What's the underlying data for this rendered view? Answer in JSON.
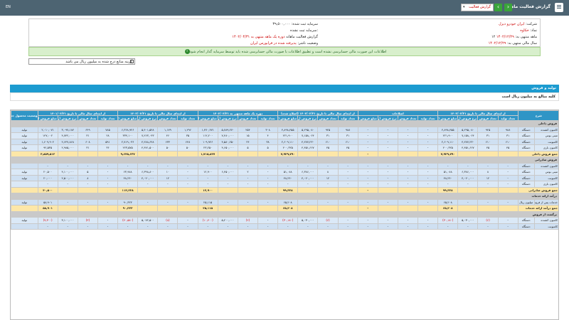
{
  "topbar": {
    "title": "گزارش فعالیت ماهانه",
    "select_value": "گزارش فعالیت",
    "next": "›",
    "prev": "‹",
    "lang": "EN"
  },
  "info": {
    "company_label": "شرکت:",
    "company_value": "ایران خودرو دیزل",
    "symbol_label": "نماد:",
    "symbol_value": "خکاوه",
    "period_label": "۱۲ ماهه منتهی به:",
    "period_value": "۱۴۰۲/۱۲/۲۹",
    "fiscal_label": "سال مالی منتهی به:",
    "fiscal_value": "۱۴۰۲/۱۲/۲۹",
    "capital_label": "سرمایه ثبت شده:",
    "capital_value": "۳۹,۵۰۰,۰۰۰",
    "unreg_label": "سرمایه ثبت نشده:",
    "unreg_value": "",
    "report_label": "گزارش فعالیت ماهانه",
    "report_value": "دوره یک ماهه منتهی به ۱۴۰۲/۰۴/۳۱",
    "status_label": "وضعیت ناشر:",
    "status_value": "پذیرفته شده در فرابورس ایران"
  },
  "notice": "اطلاعات این صورت مالی حسابرسی نشده است و تطبیق اطلاعات با صورت مالی حسابرسی شده باید توسط سرمایه گذار انجام شود",
  "checkbox_label": "گزینه منابع درج شده به میلیون ریال می باشد",
  "section_title": "تولید و فروش",
  "section_sub": "کلیه مبالغ به میلیون ریال است",
  "headers": {
    "desc": "شرح",
    "unit": "واحد",
    "product": "نام محصول",
    "groups": [
      "از ابتدای سال مالی تا تاریخ ۱۴۰۲/۰۳/۳۱",
      "اصلاحات",
      "از ابتدای سال مالی تا تاریخ ۱۴۰۲/۰۳/۳۱ (اصلاح شده)",
      "دوره یک ماهه منتهی به ۱۴۰۲/۰۴/۳۱",
      "از ابتدای سال مالی تا تاریخ ۱۴۰۲/۰۴/۳۱",
      "از ابتدای سال مالی تا تاریخ ۱۴۰۱/۰۴/۳۱",
      "وضعیت محصول جدید"
    ],
    "sub": [
      "تعداد تولید",
      "تعداد فروش",
      "نرخ فروش (ریال)",
      "مبلغ فروش (میلیون ریال)"
    ]
  },
  "groups": [
    {
      "title": "فروش داخلی",
      "rows": [
        {
          "name": "کامیون کشنده",
          "unit": "دستگاه",
          "v": [
            "۹۸۸",
            "۹۲۵",
            "۵,۲۹۵,۰۸۰",
            "۴,۸۹۸,۴۵۵",
            "-",
            "-",
            "-",
            "-",
            "۹۸۸",
            "۹۲۵",
            "۵,۲۹۵,۰۸۰",
            "۴,۸۹۸,۴۵۵",
            "۳۰۸",
            "۲۵۴",
            "۵,۷۸۹,۲۷۰",
            "۱,۴۷۰,۴۷۱",
            "۱,۲۹۶",
            "۱,۱۷۹",
            "۵,۴۰۱,۵۴۸",
            "۶,۳۶۸,۹۲۶",
            "۷۸۵",
            "۶۴۹",
            "۳,۰۹۷,۱۸۴",
            "۲,۰۱۰,۰۷۱"
          ],
          "status": "تولید"
        },
        {
          "name": "مینی بوس",
          "unit": "دستگاه",
          "v": [
            "۳۱",
            "۳۱",
            "۷,۱۵۸,۰۶۴",
            "۲۲۱,۹۰۰",
            "-",
            "-",
            "-",
            "-",
            "۳۱",
            "۳۱",
            "۷,۱۵۸,۰۶۴",
            "۲۲۱,۹۰۰",
            "۴",
            "۱۵",
            "۷,۴۸۰,۰۰۰",
            "۱۱۲,۲۰۰",
            "۳۵",
            "۴۶",
            "۷,۲۶۳,۰۴۳",
            "۳۳۴,۱۰۰",
            "۲۸",
            "۳۱",
            "۴,۷۴۲,۰۰۰",
            "۱۴۷,۰۰۲"
          ],
          "status": "تولید"
        },
        {
          "name": "کامیونت",
          "unit": "دستگاه",
          "v": [
            "۶۱۰",
            "۶۱۰",
            "۴,۲۷۷,۲۳۰",
            "۲,۶۰۹,۱۱۰",
            "-",
            "-",
            "-",
            "-",
            "۶۱۰",
            "۶۱۰",
            "۴,۲۷۷,۲۳۰",
            "۲,۶۰۹,۱۱۰",
            "۳۸",
            "۲۴",
            "۴,۵۸۰,۲۵۰",
            "۱۰۹,۹۲۶",
            "۶۴۸",
            "۶۳۴",
            "۴,۲۸۸,۶۴۸",
            "۲,۷۱۹,۰۳۶",
            "۵۹۱",
            "۶۰۸",
            "۲,۶۴۷,۸۶۸",
            "۱,۶۰۹,۹۰۴"
          ],
          "status": "تولید"
        },
        {
          "name": "کامیون باری",
          "unit": "دستگاه",
          "v": [
            "۴۵",
            "۴۵",
            "۴,۴۵۱,۶۶۷",
            "۲۰۰,۳۲۵",
            "-",
            "-",
            "-",
            "-",
            "۴۵",
            "۴۵",
            "۴,۴۵۱,۶۶۷",
            "۲۰۰,۳۲۵",
            "۵",
            "۵",
            "۴,۶۵۰,۰۰۰",
            "۲۳,۲۵۰",
            "۵۰",
            "۵۰",
            "۴,۴۷۱,۵۰۰",
            "۲۲۳,۵۷۵",
            "۳۶",
            "۳۱",
            "۲,۹۸۵,۰۰۰",
            "۹۲,۵۳۵"
          ],
          "status": "تولید"
        }
      ],
      "sum_label": "جمع فروش داخلی",
      "sum": [
        "",
        "",
        "",
        "۷,۹۲۹,۷۹۰",
        "",
        "",
        "",
        "-",
        "",
        "",
        "",
        "۷,۹۲۹,۷۹۰",
        "",
        "",
        "",
        "۱,۷۱۵,۸۴۷",
        "",
        "",
        "",
        "۹,۶۴۵,۶۳۷",
        "",
        "",
        "",
        "۳,۸۵۹,۵۱۲"
      ]
    },
    {
      "title": "فروش صادراتی",
      "rows": [
        {
          "name": "کامیون کشنده",
          "unit": "دستگاه",
          "v": [
            "-",
            "-",
            "-",
            "-",
            "-",
            "-",
            "-",
            "-",
            "-",
            "-",
            "-",
            "-",
            "-",
            "-",
            "-",
            "-",
            "-",
            "-",
            "-",
            "-",
            "-",
            "-",
            "-",
            "-"
          ],
          "status": ""
        },
        {
          "name": "مینی بوس",
          "unit": "دستگاه",
          "v": [
            "-",
            "۸",
            "۶,۳۸۶,۰۰۰",
            "۵۱,۰۸۸",
            "-",
            "-",
            "-",
            "-",
            "-",
            "۸",
            "۶,۳۸۶,۰۰۰",
            "۵۱,۰۸۸",
            "-",
            "۲",
            "۶,۴۵۰,۰۰۰",
            "۱۲,۹۰۰",
            "-",
            "۱۰",
            "۶,۳۹۸,۸۰۰",
            "۶۳,۹۸۸",
            "-",
            "۵",
            "۴,۱۰۰,۰۰۰",
            "۲۰,۵۰۰"
          ],
          "status": "تولید"
        },
        {
          "name": "کامیونت",
          "unit": "دستگاه",
          "v": [
            "-",
            "۱۲",
            "۴,۰۲۰,۰۰۰",
            "۴۸,۲۴۰",
            "-",
            "-",
            "-",
            "-",
            "-",
            "۱۲",
            "۴,۰۲۰,۰۰۰",
            "۴۸,۲۴۰",
            "-",
            "-",
            "-",
            "-",
            "-",
            "۱۲",
            "۴,۰۲۰,۰۰۰",
            "۴۸,۲۴۰",
            "-",
            "۸",
            "۲,۵۰۰,۰۰۰",
            "۲۰,۰۰۰"
          ],
          "status": "تولید"
        },
        {
          "name": "کامیون باری",
          "unit": "دستگاه",
          "v": [
            "-",
            "-",
            "-",
            "-",
            "-",
            "-",
            "-",
            "-",
            "-",
            "-",
            "-",
            "-",
            "-",
            "-",
            "-",
            "-",
            "-",
            "-",
            "-",
            "-",
            "-",
            "-",
            "-",
            "-"
          ],
          "status": ""
        }
      ],
      "sum_label": "جمع فروش صادراتی",
      "sum": [
        "",
        "",
        "",
        "۹۹,۳۲۸",
        "",
        "",
        "",
        "-",
        "",
        "",
        "",
        "۹۹,۳۲۸",
        "",
        "",
        "",
        "۱۲,۹۰۰",
        "",
        "",
        "",
        "۱۱۲,۲۲۸",
        "",
        "",
        "",
        "۴۰,۵۰۰"
      ]
    },
    {
      "title": "درآمد ارائه خدمات",
      "rows": [
        {
          "name": "خدمات پس از فروش",
          "unit": "میلیون ریال",
          "v": [
            "-",
            "-",
            "-",
            "۶۵,۲۰۸",
            "-",
            "-",
            "-",
            "-",
            "-",
            "-",
            "-",
            "۶۵,۲۰۸",
            "-",
            "-",
            "-",
            "۲۵,۱۱۵",
            "-",
            "-",
            "-",
            "۹۰,۳۲۳",
            "-",
            "-",
            "-",
            "۵۸,۹۰۱"
          ],
          "status": "تولید"
        }
      ],
      "sum_label": "جمع درآمد ارائه خدمات",
      "sum": [
        "",
        "",
        "",
        "۶۵,۲۰۸",
        "",
        "",
        "",
        "-",
        "",
        "",
        "",
        "۶۵,۲۰۸",
        "",
        "",
        "",
        "۲۵,۱۱۵",
        "",
        "",
        "",
        "۹۰,۳۲۳",
        "",
        "",
        "",
        "۵۸,۹۰۱"
      ]
    },
    {
      "title": "برگشت از فروش",
      "rows": [
        {
          "name": "کامیون کشنده",
          "unit": "دستگاه",
          "v": [
            "-",
            "(۶)",
            "۵,۰۳۰,۰۰۰",
            "(۳۰,۱۸۰)",
            "-",
            "-",
            "-",
            "-",
            "-",
            "(۶)",
            "۵,۰۳۰,۰۰۰",
            "(۳۰,۱۸۰)",
            "-",
            "(۲)",
            "۵,۲۰۰,۰۰۰",
            "(۱۰,۴۰۰)",
            "-",
            "(۸)",
            "۵,۰۷۲,۵۰۰",
            "(۴۰,۵۸۰)",
            "-",
            "(۳)",
            "۳,۱۰۰,۰۰۰",
            "(۹,۳۰۰)"
          ],
          "status": "تولید"
        },
        {
          "name": "کامیونت",
          "unit": "دستگاه",
          "v": [
            "-",
            "-",
            "-",
            "-",
            "-",
            "-",
            "-",
            "-",
            "-",
            "-",
            "-",
            "-",
            "-",
            "-",
            "-",
            "-",
            "-",
            "-",
            "-",
            "-",
            "-",
            "-",
            "-",
            "-"
          ],
          "status": ""
        }
      ]
    }
  ]
}
